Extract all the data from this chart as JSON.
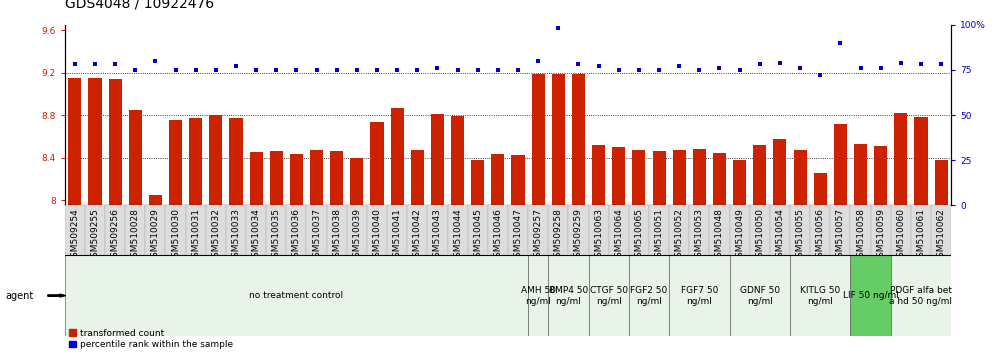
{
  "title": "GDS4048 / 10922476",
  "samples": [
    "GSM509254",
    "GSM509255",
    "GSM509256",
    "GSM510028",
    "GSM510029",
    "GSM510030",
    "GSM510031",
    "GSM510032",
    "GSM510033",
    "GSM510034",
    "GSM510035",
    "GSM510036",
    "GSM510037",
    "GSM510038",
    "GSM510039",
    "GSM510040",
    "GSM510041",
    "GSM510042",
    "GSM510043",
    "GSM510044",
    "GSM510045",
    "GSM510046",
    "GSM510047",
    "GSM509257",
    "GSM509258",
    "GSM509259",
    "GSM510063",
    "GSM510064",
    "GSM510065",
    "GSM510051",
    "GSM510052",
    "GSM510053",
    "GSM510048",
    "GSM510049",
    "GSM510050",
    "GSM510054",
    "GSM510055",
    "GSM510056",
    "GSM510057",
    "GSM510058",
    "GSM510059",
    "GSM510060",
    "GSM510061",
    "GSM510062"
  ],
  "bar_values": [
    9.15,
    9.15,
    9.14,
    8.85,
    8.05,
    8.75,
    8.77,
    8.8,
    8.77,
    8.45,
    8.46,
    8.43,
    8.47,
    8.46,
    8.4,
    8.73,
    8.87,
    8.47,
    8.81,
    8.79,
    8.38,
    8.43,
    8.42,
    9.19,
    9.19,
    9.19,
    8.52,
    8.5,
    8.47,
    8.46,
    8.47,
    8.48,
    8.44,
    8.38,
    8.52,
    8.57,
    8.47,
    8.25,
    8.72,
    8.53,
    8.51,
    8.82,
    8.78,
    8.38
  ],
  "dot_values": [
    78,
    78,
    78,
    75,
    80,
    75,
    75,
    75,
    77,
    75,
    75,
    75,
    75,
    75,
    75,
    75,
    75,
    75,
    76,
    75,
    75,
    75,
    75,
    80,
    98,
    78,
    77,
    75,
    75,
    75,
    77,
    75,
    76,
    75,
    78,
    79,
    76,
    72,
    90,
    76,
    76,
    79,
    78,
    78
  ],
  "groups": [
    {
      "label": "no treatment control",
      "start": 0,
      "end": 23,
      "color": "#e8f4e8",
      "bright": false
    },
    {
      "label": "AMH 50\nng/ml",
      "start": 23,
      "end": 24,
      "color": "#e8f4e8",
      "bright": false
    },
    {
      "label": "BMP4 50\nng/ml",
      "start": 24,
      "end": 26,
      "color": "#e8f4e8",
      "bright": false
    },
    {
      "label": "CTGF 50\nng/ml",
      "start": 26,
      "end": 28,
      "color": "#e8f4e8",
      "bright": false
    },
    {
      "label": "FGF2 50\nng/ml",
      "start": 28,
      "end": 30,
      "color": "#e8f4e8",
      "bright": false
    },
    {
      "label": "FGF7 50\nng/ml",
      "start": 30,
      "end": 33,
      "color": "#e8f4e8",
      "bright": false
    },
    {
      "label": "GDNF 50\nng/ml",
      "start": 33,
      "end": 36,
      "color": "#e8f4e8",
      "bright": false
    },
    {
      "label": "KITLG 50\nng/ml",
      "start": 36,
      "end": 39,
      "color": "#e8f4e8",
      "bright": false
    },
    {
      "label": "LIF 50 ng/ml",
      "start": 39,
      "end": 41,
      "color": "#66cc66",
      "bright": true
    },
    {
      "label": "PDGF alfa bet\na hd 50 ng/ml",
      "start": 41,
      "end": 44,
      "color": "#e8f4e8",
      "bright": false
    }
  ],
  "ylim_left": [
    7.95,
    9.65
  ],
  "ylim_right": [
    0,
    100
  ],
  "yticks_left": [
    8.0,
    8.4,
    8.8,
    9.2,
    9.6
  ],
  "ytick_labels_left": [
    "8",
    "8.4",
    "8.8",
    "9.2",
    "9.6"
  ],
  "yticks_right": [
    0,
    25,
    50,
    75,
    100
  ],
  "ytick_labels_right": [
    "0",
    "25",
    "50",
    "75",
    "100%"
  ],
  "bar_color": "#cc2200",
  "dot_color": "#0000cc",
  "bg_color": "#ffffff",
  "title_fontsize": 10,
  "tick_fontsize": 6.5,
  "group_fontsize": 6.5
}
